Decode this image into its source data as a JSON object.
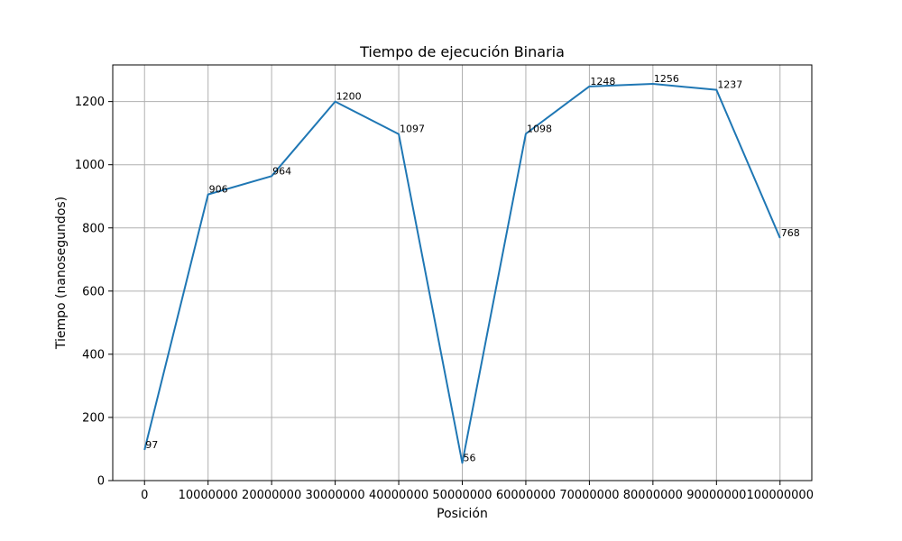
{
  "chart_data": {
    "type": "line",
    "title": "Tiempo de ejecución Binaria",
    "xlabel": "Posición",
    "ylabel": "Tiempo (nanosegundos)",
    "x": [
      0,
      10000000,
      20000000,
      30000000,
      40000000,
      50000000,
      60000000,
      70000000,
      80000000,
      90000000,
      100000000
    ],
    "x_tick_labels": [
      "0",
      "10000000",
      "20000000",
      "30000000",
      "40000000",
      "50000000",
      "60000000",
      "70000000",
      "80000000",
      "90000000",
      "100000000"
    ],
    "y_ticks": [
      0,
      200,
      400,
      600,
      800,
      1000,
      1200
    ],
    "y_tick_labels": [
      "0",
      "200",
      "400",
      "600",
      "800",
      "1000",
      "1200"
    ],
    "series": [
      {
        "color": "#1f77b4",
        "values": [
          97,
          906,
          964,
          1200,
          1097,
          56,
          1098,
          1248,
          1256,
          1237,
          768
        ],
        "labels": [
          "97",
          "906",
          "964",
          "1200",
          "1097",
          "56",
          "1098",
          "1248",
          "1256",
          "1237",
          "768"
        ]
      }
    ],
    "xlim": [
      -5000000,
      105000000
    ],
    "ylim": [
      0,
      1316
    ],
    "grid": true,
    "legend": false
  }
}
